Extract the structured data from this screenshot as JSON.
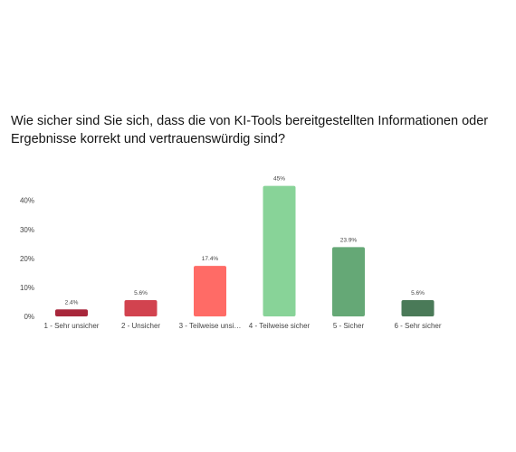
{
  "chart_data": {
    "type": "bar",
    "title": "Wie sicher sind Sie sich, dass die von KI-Tools bereitgestellten Informationen oder Ergebnisse korrekt und vertrauenswürdig sind?",
    "categories": [
      "1 - Sehr unsicher",
      "2 - Unsicher",
      "3 - Teilweise unsi…",
      "4 - Teilweise sicher",
      "5 - Sicher",
      "6 - Sehr sicher"
    ],
    "values": [
      2.4,
      5.6,
      17.4,
      45,
      23.9,
      5.6
    ],
    "data_labels": [
      "2.4%",
      "5.6%",
      "17.4%",
      "45%",
      "23.9%",
      "5.6%"
    ],
    "colors": [
      "#a8273b",
      "#d2434f",
      "#ff6b66",
      "#88d398",
      "#65a876",
      "#4a7a58"
    ],
    "ylim": [
      0,
      48
    ],
    "yticks": [
      0,
      10,
      20,
      30,
      40
    ],
    "ytick_labels": [
      "0%",
      "10%",
      "20%",
      "30%",
      "40%"
    ],
    "grid": false,
    "xlabel": "",
    "ylabel": ""
  }
}
